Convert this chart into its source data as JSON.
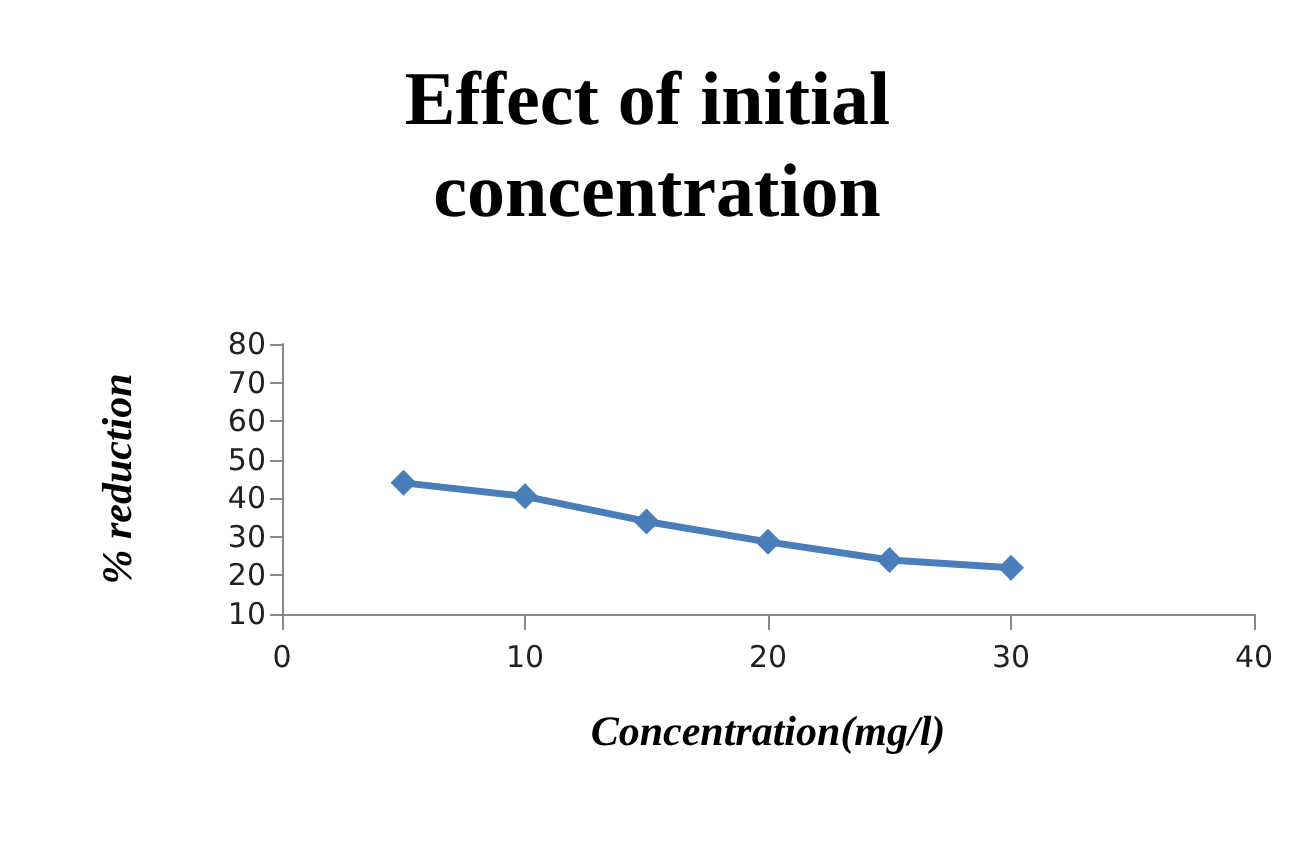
{
  "chart_data": {
    "type": "line",
    "title": "Effect of initial concentration",
    "xlabel": "Concentration(mg/l)",
    "ylabel": "% reduction",
    "x": [
      5,
      10,
      15,
      20,
      25,
      30
    ],
    "series": [
      {
        "color": "#4a7ebb",
        "values": [
          44,
          40.5,
          34,
          28.7,
          24,
          22
        ]
      }
    ],
    "xlim": [
      0,
      40
    ],
    "xticks": [
      0,
      10,
      20,
      30,
      40
    ],
    "ylim": [
      10,
      80
    ],
    "yticks": [
      10,
      20,
      30,
      40,
      50,
      60,
      70,
      80
    ],
    "grid": false,
    "marker": "diamond",
    "line_style": "solid"
  }
}
